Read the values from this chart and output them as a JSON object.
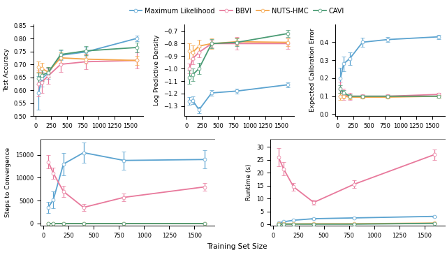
{
  "colors": {
    "ML": "#5ba3d0",
    "BBVI": "#e8799c",
    "NUTS": "#f5a54a",
    "CAVI": "#4a9b74"
  },
  "legend_labels": [
    "Maximum Likelihood",
    "BBVI",
    "NUTS-HMC",
    "CAVI"
  ],
  "acc": {
    "x": [
      50,
      100,
      200,
      400,
      800,
      1600
    ],
    "ML": [
      0.59,
      0.645,
      0.665,
      0.735,
      0.748,
      0.8
    ],
    "BBVI": [
      0.625,
      0.63,
      0.655,
      0.7,
      0.71,
      0.715
    ],
    "NUTS": [
      0.69,
      0.685,
      0.67,
      0.725,
      0.72,
      0.715
    ],
    "CAVI": [
      0.645,
      0.658,
      0.668,
      0.738,
      0.752,
      0.765
    ],
    "ML_err": [
      0.065,
      0.03,
      0.022,
      0.018,
      0.018,
      0.012
    ],
    "BBVI_err": [
      0.05,
      0.04,
      0.03,
      0.03,
      0.03,
      0.03
    ],
    "NUTS_err": [
      0.02,
      0.02,
      0.02,
      0.02,
      0.018,
      0.018
    ],
    "CAVI_err": [
      0.022,
      0.022,
      0.02,
      0.018,
      0.018,
      0.018
    ],
    "ylim": [
      0.5,
      0.855
    ],
    "yticks": [
      0.5,
      0.55,
      0.6,
      0.65,
      0.7,
      0.75,
      0.8,
      0.85
    ],
    "ylabel": "Test Accuracy"
  },
  "lpd": {
    "x": [
      50,
      100,
      200,
      400,
      800,
      1600
    ],
    "ML": [
      -1.26,
      -1.255,
      -1.33,
      -1.195,
      -1.18,
      -1.13
    ],
    "BBVI": [
      -1.0,
      -0.92,
      -0.87,
      -0.8,
      -0.8,
      -0.8
    ],
    "NUTS": [
      -0.86,
      -0.87,
      -0.82,
      -0.8,
      -0.785,
      -0.79
    ],
    "CAVI": [
      -1.07,
      -1.05,
      -1.0,
      -0.8,
      -0.79,
      -0.72
    ],
    "ML_err": [
      0.03,
      0.03,
      0.025,
      0.02,
      0.02,
      0.02
    ],
    "BBVI_err": [
      0.04,
      0.045,
      0.04,
      0.03,
      0.05,
      0.04
    ],
    "NUTS_err": [
      0.06,
      0.055,
      0.05,
      0.04,
      0.03,
      0.03
    ],
    "CAVI_err": [
      0.055,
      0.05,
      0.045,
      0.035,
      0.03,
      0.03
    ],
    "ylim": [
      -1.38,
      -0.645
    ],
    "yticks": [
      -1.3,
      -1.2,
      -1.1,
      -1.0,
      -0.9,
      -0.8,
      -0.7
    ],
    "ylabel": "Log Predictive Density"
  },
  "ece": {
    "x": [
      50,
      100,
      200,
      400,
      800,
      1600
    ],
    "ML": [
      0.2,
      0.28,
      0.31,
      0.4,
      0.415,
      0.43
    ],
    "BBVI": [
      0.14,
      0.11,
      0.1,
      0.1,
      0.1,
      0.11
    ],
    "NUTS": [
      0.1,
      0.1,
      0.095,
      0.095,
      0.095,
      0.1
    ],
    "CAVI": [
      0.14,
      0.12,
      0.1,
      0.1,
      0.1,
      0.1
    ],
    "ML_err": [
      0.06,
      0.04,
      0.035,
      0.025,
      0.015,
      0.012
    ],
    "BBVI_err": [
      0.04,
      0.03,
      0.02,
      0.012,
      0.01,
      0.01
    ],
    "NUTS_err": [
      0.02,
      0.012,
      0.01,
      0.008,
      0.008,
      0.008
    ],
    "CAVI_err": [
      0.022,
      0.014,
      0.01,
      0.008,
      0.008,
      0.008
    ],
    "ylim": [
      -0.01,
      0.5
    ],
    "yticks": [
      0.0,
      0.1,
      0.2,
      0.3,
      0.4
    ],
    "ylabel": "Expected Calibration Error"
  },
  "steps": {
    "x": [
      50,
      100,
      200,
      400,
      800,
      1600
    ],
    "ML": [
      3500,
      5200,
      13000,
      15500,
      13800,
      14000
    ],
    "BBVI": [
      13500,
      11000,
      7000,
      3500,
      5700,
      8000
    ],
    "NUTS": [
      0,
      0,
      0,
      0,
      0,
      0
    ],
    "CAVI": [
      0,
      0,
      0,
      0,
      0,
      0
    ],
    "ML_err": [
      1200,
      1800,
      2500,
      2200,
      2000,
      2000
    ],
    "BBVI_err": [
      1500,
      1200,
      1200,
      800,
      800,
      800
    ],
    "NUTS_err": [
      0,
      0,
      0,
      0,
      0,
      0
    ],
    "CAVI_err": [
      0,
      0,
      0,
      0,
      0,
      0
    ],
    "ylim": [
      -500,
      18500
    ],
    "yticks": [
      0,
      5000,
      10000,
      15000
    ],
    "ylabel": "Steps to Convergence"
  },
  "runtime": {
    "x": [
      50,
      100,
      200,
      400,
      800,
      1600
    ],
    "ML": [
      0.5,
      1.0,
      1.6,
      2.2,
      2.5,
      3.1
    ],
    "BBVI": [
      26.0,
      21.5,
      14.5,
      8.5,
      15.5,
      27.0
    ],
    "NUTS": [
      0.2,
      0.2,
      0.2,
      0.25,
      0.25,
      0.5
    ],
    "CAVI": [
      0.1,
      0.1,
      0.1,
      0.1,
      0.1,
      0.4
    ],
    "ML_err": [
      0.08,
      0.1,
      0.15,
      0.2,
      0.25,
      0.25
    ],
    "BBVI_err": [
      3.5,
      2.5,
      1.5,
      1.0,
      1.5,
      2.0
    ],
    "NUTS_err": [
      0.03,
      0.03,
      0.03,
      0.03,
      0.03,
      0.05
    ],
    "CAVI_err": [
      0.02,
      0.02,
      0.02,
      0.02,
      0.02,
      0.05
    ],
    "ylim": [
      -0.5,
      33
    ],
    "yticks": [
      0,
      5,
      10,
      15,
      20,
      25,
      30
    ],
    "ylabel": "Runtime (s)"
  },
  "x_ticks": [
    0,
    250,
    500,
    750,
    1000,
    1250,
    1500
  ],
  "xlabel": "Training Set Size",
  "marker": "o",
  "markersize": 3.5,
  "linewidth": 1.3,
  "capsize": 2.5,
  "elinewidth": 0.9
}
